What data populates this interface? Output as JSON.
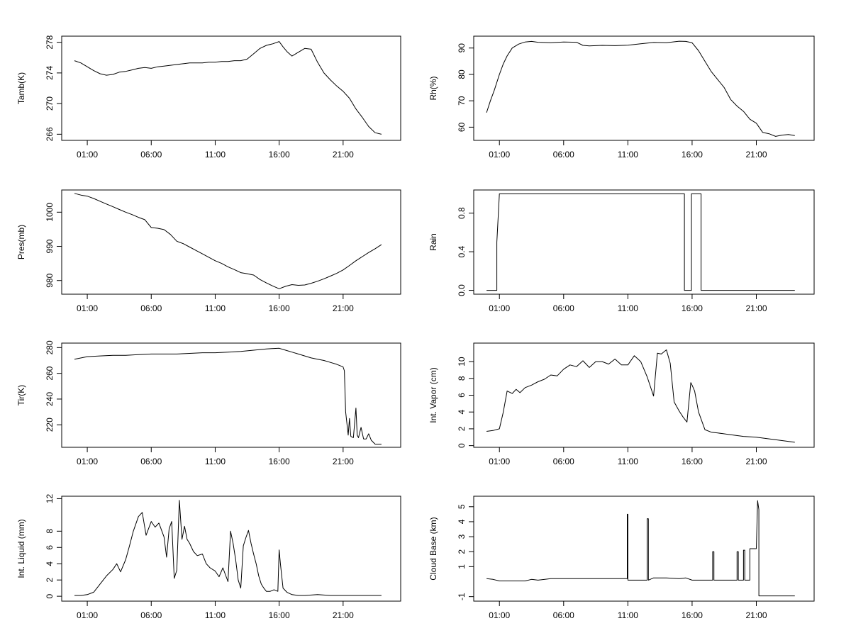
{
  "chart_data": [
    {
      "type": "line",
      "ylabel": "Tamb(K)",
      "xlim": [
        -1,
        25.5
      ],
      "ylim": [
        265.2,
        278.8
      ],
      "x_ticks": [
        "01:00",
        "06:00",
        "11:00",
        "16:00",
        "21:00"
      ],
      "x_tick_values": [
        1,
        6,
        11,
        16,
        21
      ],
      "y_ticks": [
        "266",
        "270",
        "274",
        "278"
      ],
      "y_tick_values": [
        266,
        270,
        274,
        278
      ],
      "y_tick_rotate": true,
      "series": [
        {
          "x": [
            0,
            0.5,
            1,
            1.5,
            2,
            2.5,
            3,
            3.5,
            4,
            4.5,
            5,
            5.5,
            6,
            6.5,
            7,
            7.5,
            8,
            8.5,
            9,
            9.5,
            10,
            10.5,
            11,
            11.5,
            12,
            12.5,
            13,
            13.5,
            14,
            14.5,
            15,
            15.5,
            16,
            16.3,
            16.6,
            17,
            17.5,
            18,
            18.5,
            19,
            19.5,
            20,
            20.5,
            21,
            21.5,
            22,
            22.5,
            23,
            23.5,
            24
          ],
          "y": [
            275.6,
            275.3,
            274.8,
            274.3,
            273.9,
            273.7,
            273.8,
            274.1,
            274.2,
            274.4,
            274.6,
            274.7,
            274.6,
            274.8,
            274.9,
            275.0,
            275.1,
            275.2,
            275.3,
            275.3,
            275.3,
            275.4,
            275.4,
            275.5,
            275.5,
            275.6,
            275.6,
            275.8,
            276.5,
            277.2,
            277.6,
            277.8,
            278.1,
            277.4,
            276.8,
            276.2,
            276.7,
            277.2,
            277.1,
            275.4,
            274.0,
            273.1,
            272.3,
            271.6,
            270.7,
            269.3,
            268.2,
            267.0,
            266.2,
            266.0
          ]
        }
      ]
    },
    {
      "type": "line",
      "ylabel": "Rh(%)",
      "xlim": [
        -1,
        25.5
      ],
      "ylim": [
        55,
        94.5
      ],
      "x_ticks": [
        "01:00",
        "06:00",
        "11:00",
        "16:00",
        "21:00"
      ],
      "x_tick_values": [
        1,
        6,
        11,
        16,
        21
      ],
      "y_ticks": [
        "60",
        "70",
        "80",
        "90"
      ],
      "y_tick_values": [
        60,
        70,
        80,
        90
      ],
      "y_tick_rotate": true,
      "series": [
        {
          "x": [
            0,
            0.3,
            0.6,
            1,
            1.3,
            1.6,
            2,
            2.5,
            3,
            3.5,
            4,
            5,
            6,
            7,
            7.5,
            8,
            9,
            10,
            11,
            12,
            13,
            14,
            15,
            15.5,
            16,
            16.5,
            17,
            17.5,
            18,
            18.5,
            19,
            19.5,
            20,
            20.5,
            21,
            21.5,
            22,
            22.5,
            23,
            23.5,
            24
          ],
          "y": [
            65.5,
            70,
            74,
            80,
            84,
            87,
            90,
            91.5,
            92.3,
            92.5,
            92.2,
            92.0,
            92.3,
            92.2,
            91.0,
            90.8,
            91.0,
            90.9,
            91.1,
            91.6,
            92.1,
            92.0,
            92.6,
            92.5,
            92.0,
            89.0,
            85.0,
            81.0,
            78.0,
            75.0,
            70.5,
            68.0,
            66.0,
            63.0,
            61.5,
            58.0,
            57.5,
            56.5,
            57.0,
            57.2,
            56.8
          ]
        }
      ]
    },
    {
      "type": "line",
      "ylabel": "Pres(mb)",
      "xlim": [
        -1,
        25.5
      ],
      "ylim": [
        976,
        1006.5
      ],
      "x_ticks": [
        "01:00",
        "06:00",
        "11:00",
        "16:00",
        "21:00"
      ],
      "x_tick_values": [
        1,
        6,
        11,
        16,
        21
      ],
      "y_ticks": [
        "980",
        "990",
        "1000"
      ],
      "y_tick_values": [
        980,
        990,
        1000
      ],
      "y_tick_rotate": true,
      "series": [
        {
          "x": [
            0,
            0.5,
            1,
            1.5,
            2,
            2.5,
            3,
            3.5,
            4,
            4.5,
            5,
            5.5,
            6,
            6.5,
            7,
            7.5,
            8,
            8.5,
            9,
            9.5,
            10,
            10.5,
            11,
            11.5,
            12,
            12.5,
            13,
            13.5,
            14,
            14.5,
            15,
            15.5,
            16,
            16.5,
            17,
            17.5,
            18,
            18.5,
            19,
            19.5,
            20,
            20.5,
            21,
            21.5,
            22,
            22.5,
            23,
            23.5,
            24
          ],
          "y": [
            1005.5,
            1005.0,
            1004.7,
            1004.0,
            1003.2,
            1002.4,
            1001.6,
            1000.8,
            1000.0,
            999.3,
            998.5,
            997.8,
            995.5,
            995.3,
            994.9,
            993.5,
            991.5,
            990.8,
            989.8,
            988.8,
            987.8,
            986.8,
            985.8,
            985.0,
            984.0,
            983.2,
            982.3,
            982.0,
            981.6,
            980.3,
            979.3,
            978.4,
            977.6,
            978.3,
            978.8,
            978.6,
            978.7,
            979.2,
            979.8,
            980.5,
            981.3,
            982.1,
            983.1,
            984.4,
            985.8,
            987.0,
            988.2,
            989.3,
            990.5
          ]
        }
      ]
    },
    {
      "type": "line",
      "ylabel": "Rain",
      "xlim": [
        -1,
        25.5
      ],
      "ylim": [
        -0.04,
        1.04
      ],
      "x_ticks": [
        "01:00",
        "06:00",
        "11:00",
        "16:00",
        "21:00"
      ],
      "x_tick_values": [
        1,
        6,
        11,
        16,
        21
      ],
      "y_ticks": [
        "0.0",
        "0.4",
        "0.8"
      ],
      "y_tick_values": [
        0,
        0.4,
        0.8
      ],
      "y_tick_rotate": true,
      "series": [
        {
          "x": [
            0,
            0.8,
            0.8,
            1.0,
            15.4,
            15.4,
            15.95,
            15.95,
            16.7,
            16.7,
            24
          ],
          "y": [
            0,
            0,
            0.5,
            1,
            1,
            0,
            0,
            1,
            1,
            0,
            0
          ]
        }
      ]
    },
    {
      "type": "line",
      "ylabel": "Tir(K)",
      "xlim": [
        -1,
        25.5
      ],
      "ylim": [
        202.5,
        283.5
      ],
      "x_ticks": [
        "01:00",
        "06:00",
        "11:00",
        "16:00",
        "21:00"
      ],
      "x_tick_values": [
        1,
        6,
        11,
        16,
        21
      ],
      "y_ticks": [
        "220",
        "240",
        "260",
        "280"
      ],
      "y_tick_values": [
        220,
        240,
        260,
        280
      ],
      "y_tick_rotate": true,
      "series": [
        {
          "x": [
            0,
            1,
            2,
            3,
            4,
            5,
            6,
            7,
            8,
            9,
            10,
            11,
            12,
            13,
            14,
            15,
            16,
            16.5,
            17,
            17.5,
            18,
            18.5,
            19,
            19.5,
            20,
            20.5,
            21,
            21.1,
            21.2,
            21.4,
            21.5,
            21.6,
            21.8,
            22,
            22.1,
            22.2,
            22.4,
            22.6,
            22.8,
            23,
            23.2,
            23.5,
            24
          ],
          "y": [
            271,
            273,
            273.5,
            274,
            274,
            274.5,
            275,
            275,
            275,
            275.5,
            276,
            276,
            276.5,
            277,
            278,
            279,
            279.5,
            278,
            276.5,
            275,
            273.5,
            272,
            271,
            270,
            268.5,
            267,
            265,
            262,
            230,
            212,
            225,
            211,
            210,
            233,
            212,
            210,
            218,
            209,
            209,
            213,
            208,
            205,
            205
          ]
        }
      ]
    },
    {
      "type": "line",
      "ylabel": "Int. Vapor (cm)",
      "xlim": [
        -1,
        25.5
      ],
      "ylim": [
        -0.2,
        12.2
      ],
      "x_ticks": [
        "01:00",
        "06:00",
        "11:00",
        "16:00",
        "21:00"
      ],
      "x_tick_values": [
        1,
        6,
        11,
        16,
        21
      ],
      "y_ticks": [
        "0",
        "2",
        "4",
        "6",
        "8",
        "10"
      ],
      "y_tick_values": [
        0,
        2,
        4,
        6,
        8,
        10
      ],
      "y_tick_rotate": true,
      "series": [
        {
          "x": [
            0,
            0.5,
            1,
            1.3,
            1.6,
            2,
            2.3,
            2.6,
            3,
            3.5,
            4,
            4.5,
            5,
            5.5,
            6,
            6.5,
            7,
            7.5,
            8,
            8.5,
            9,
            9.5,
            10,
            10.5,
            11,
            11.5,
            12,
            12.5,
            13,
            13.3,
            13.6,
            14,
            14.3,
            14.6,
            15,
            15.3,
            15.6,
            15.9,
            16,
            16.2,
            16.5,
            17,
            17.5,
            18,
            19,
            20,
            21,
            22,
            23,
            24
          ],
          "y": [
            1.7,
            1.8,
            2.0,
            4.0,
            6.5,
            6.2,
            6.7,
            6.3,
            6.9,
            7.2,
            7.6,
            7.9,
            8.4,
            8.3,
            9.1,
            9.6,
            9.4,
            10.1,
            9.3,
            10.0,
            10.0,
            9.7,
            10.3,
            9.6,
            9.6,
            10.7,
            10.0,
            8.2,
            5.9,
            11.0,
            10.9,
            11.4,
            9.8,
            5.2,
            4.1,
            3.4,
            2.8,
            7.5,
            7.2,
            6.5,
            4.0,
            1.9,
            1.6,
            1.5,
            1.3,
            1.1,
            1.0,
            0.8,
            0.6,
            0.4
          ]
        }
      ]
    },
    {
      "type": "line",
      "ylabel": "Int. Liquid (mm)",
      "xlim": [
        -1,
        25.5
      ],
      "ylim": [
        -0.6,
        12.3
      ],
      "x_ticks": [
        "01:00",
        "06:00",
        "11:00",
        "16:00",
        "21:00"
      ],
      "x_tick_values": [
        1,
        6,
        11,
        16,
        21
      ],
      "y_ticks": [
        "0",
        "2",
        "4",
        "6",
        "8",
        "12"
      ],
      "y_tick_values": [
        0,
        2,
        4,
        6,
        8,
        12
      ],
      "y_tick_rotate": true,
      "series": [
        {
          "x": [
            0,
            0.5,
            1,
            1.5,
            2,
            2.5,
            3,
            3.3,
            3.6,
            4,
            4.3,
            4.6,
            5,
            5.3,
            5.6,
            6,
            6.3,
            6.6,
            7,
            7.2,
            7.4,
            7.6,
            7.8,
            8,
            8.2,
            8.4,
            8.6,
            8.8,
            9,
            9.3,
            9.6,
            10,
            10.3,
            10.6,
            11,
            11.3,
            11.6,
            12,
            12.2,
            12.4,
            12.6,
            12.8,
            13,
            13.2,
            13.4,
            13.6,
            13.8,
            14,
            14.2,
            14.4,
            14.6,
            14.8,
            15,
            15.3,
            15.6,
            15.9,
            16,
            16.1,
            16.3,
            16.6,
            17,
            17.5,
            18,
            19,
            20,
            21,
            22,
            23,
            24
          ],
          "y": [
            0.1,
            0.1,
            0.2,
            0.5,
            1.5,
            2.5,
            3.3,
            4.0,
            3.0,
            4.5,
            6.2,
            8.0,
            9.8,
            10.3,
            7.5,
            9.2,
            8.5,
            9.0,
            7.3,
            4.8,
            8.3,
            9.2,
            2.2,
            3.2,
            11.8,
            7.0,
            8.6,
            7.0,
            6.5,
            5.5,
            5.0,
            5.2,
            4.0,
            3.5,
            3.1,
            2.4,
            3.5,
            1.8,
            8.0,
            6.5,
            4.5,
            2.0,
            1.0,
            6.2,
            7.2,
            8.1,
            6.5,
            5.2,
            4.0,
            2.5,
            1.5,
            1.0,
            0.6,
            0.6,
            0.8,
            0.6,
            5.7,
            4.0,
            1.0,
            0.5,
            0.2,
            0.1,
            0.1,
            0.2,
            0.1,
            0.1,
            0.1,
            0.1,
            0.1
          ]
        }
      ]
    },
    {
      "type": "line",
      "ylabel": "Cloud Base (km)",
      "xlim": [
        -1,
        25.5
      ],
      "ylim": [
        -1.3,
        5.7
      ],
      "x_ticks": [
        "01:00",
        "06:00",
        "11:00",
        "16:00",
        "21:00"
      ],
      "x_tick_values": [
        1,
        6,
        11,
        16,
        21
      ],
      "y_ticks": [
        "-1",
        "1",
        "2",
        "3",
        "4",
        "5"
      ],
      "y_tick_values": [
        -1,
        1,
        2,
        3,
        4,
        5
      ],
      "y_tick_rotate": true,
      "series": [
        {
          "x": [
            0,
            0.5,
            1,
            2,
            3,
            3.5,
            4,
            5,
            6,
            7,
            8,
            9,
            10,
            10.95,
            10.95,
            11.0,
            11.0,
            12,
            12.5,
            12.5,
            12.6,
            12.6,
            13,
            14,
            15,
            15.5,
            16,
            16.5,
            17,
            17.6,
            17.6,
            17.7,
            17.7,
            18,
            19,
            19.5,
            19.5,
            19.6,
            19.6,
            20,
            20,
            20.1,
            20.1,
            20.5,
            20.5,
            20.7,
            21,
            21.1,
            21.2,
            21.2,
            22,
            23,
            24
          ],
          "y": [
            0.2,
            0.15,
            0.05,
            0.05,
            0.05,
            0.15,
            0.1,
            0.2,
            0.2,
            0.2,
            0.2,
            0.2,
            0.2,
            0.2,
            4.5,
            4.5,
            0.1,
            0.1,
            0.1,
            4.2,
            4.2,
            0.1,
            0.25,
            0.25,
            0.2,
            0.25,
            0.1,
            0.1,
            0.1,
            0.1,
            2.0,
            2.0,
            0.1,
            0.1,
            0.1,
            0.1,
            2.0,
            2.0,
            0.1,
            0.1,
            2.1,
            2.1,
            0.1,
            0.1,
            2.2,
            2.2,
            2.2,
            5.4,
            4.8,
            -0.95,
            -0.95,
            -0.95,
            -0.95
          ]
        }
      ]
    }
  ]
}
